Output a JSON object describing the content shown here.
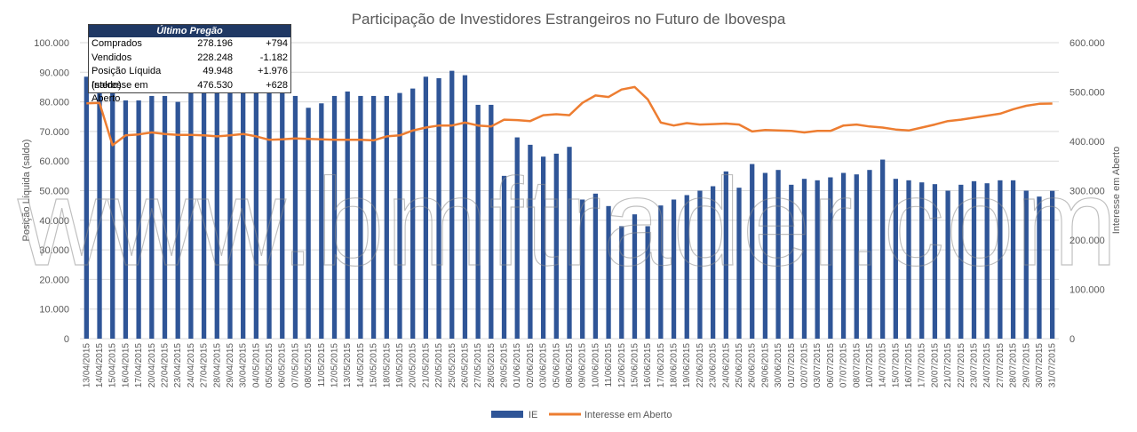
{
  "info_box": {
    "title": "Último Pregão",
    "rows": [
      {
        "label": "Comprados",
        "value": "278.196",
        "change": "+794"
      },
      {
        "label": "Vendidos",
        "value": "228.248",
        "change": "-1.182"
      },
      {
        "label": "Posição Líquida (saldo)",
        "value": "49.948",
        "change": "+1.976"
      },
      {
        "label": "Interesse em Aberto",
        "value": "476.530",
        "change": "+628"
      }
    ]
  },
  "watermark": "www.bmftrader.com",
  "colors": {
    "bar": "#2f5597",
    "line": "#ed7d31",
    "grid": "#d9d9d9",
    "text": "#595959"
  },
  "chart_data": {
    "type": "bar",
    "title": "Participação de Investidores Estrangeiros no Futuro de Ibovespa",
    "ylabel": "Posição Líquida (saldo)",
    "y2label": "Interesse em Aberto",
    "ylim": [
      0,
      100000
    ],
    "y2lim": [
      0,
      600000
    ],
    "yticks": [
      "0",
      "10.000",
      "20.000",
      "30.000",
      "40.000",
      "50.000",
      "60.000",
      "70.000",
      "80.000",
      "90.000",
      "100.000"
    ],
    "y2ticks": [
      "0",
      "100.000",
      "200.000",
      "300.000",
      "400.000",
      "500.000",
      "600.000"
    ],
    "grid": true,
    "legend_position": "bottom",
    "categories": [
      "13/04/2015",
      "14/04/2015",
      "15/04/2015",
      "16/04/2015",
      "17/04/2015",
      "20/04/2015",
      "22/04/2015",
      "23/04/2015",
      "24/04/2015",
      "27/04/2015",
      "28/04/2015",
      "29/04/2015",
      "30/04/2015",
      "04/05/2015",
      "05/05/2015",
      "06/05/2015",
      "07/05/2015",
      "08/05/2015",
      "11/05/2015",
      "12/05/2015",
      "13/05/2015",
      "14/05/2015",
      "15/05/2015",
      "18/05/2015",
      "19/05/2015",
      "20/05/2015",
      "21/05/2015",
      "22/05/2015",
      "25/05/2015",
      "26/05/2015",
      "27/05/2015",
      "28/05/2015",
      "29/05/2015",
      "01/06/2015",
      "02/06/2015",
      "03/06/2015",
      "05/06/2015",
      "08/06/2015",
      "09/06/2015",
      "10/06/2015",
      "11/06/2015",
      "12/06/2015",
      "15/06/2015",
      "16/06/2015",
      "17/06/2015",
      "18/06/2015",
      "19/06/2015",
      "22/06/2015",
      "23/06/2015",
      "24/06/2015",
      "25/06/2015",
      "26/06/2015",
      "29/06/2015",
      "30/06/2015",
      "01/07/2015",
      "02/07/2015",
      "03/07/2015",
      "06/07/2015",
      "07/07/2015",
      "08/07/2015",
      "10/07/2015",
      "14/07/2015",
      "15/07/2015",
      "16/07/2015",
      "17/07/2015",
      "20/07/2015",
      "21/07/2015",
      "22/07/2015",
      "23/07/2015",
      "24/07/2015",
      "27/07/2015",
      "28/07/2015",
      "29/07/2015",
      "30/07/2015",
      "31/07/2015"
    ],
    "series": [
      {
        "name": "IE",
        "type": "bar",
        "axis": "left",
        "values": [
          88500,
          85000,
          83000,
          80500,
          80500,
          82000,
          82000,
          80000,
          83000,
          83000,
          83000,
          83000,
          83000,
          83000,
          83000,
          83000,
          82000,
          78000,
          79500,
          82000,
          83500,
          82000,
          82000,
          82000,
          83000,
          84500,
          88500,
          88000,
          90500,
          89000,
          79000,
          79000,
          55000,
          68000,
          65500,
          61500,
          62500,
          64800,
          47000,
          49000,
          44800,
          38000,
          42000,
          38000,
          45000,
          47000,
          48500,
          50000,
          51500,
          56500,
          51000,
          59000,
          56000,
          57000,
          52000,
          54000,
          53500,
          54500,
          56000,
          55500,
          57000,
          60500,
          54000,
          53500,
          52800,
          52200,
          50000,
          52000,
          53200,
          52500,
          53500,
          53500,
          50000,
          48000,
          49948
        ]
      },
      {
        "name": "Interesse em Aberto",
        "type": "line",
        "axis": "right",
        "values": [
          477000,
          478000,
          392000,
          412000,
          414000,
          418000,
          415000,
          413000,
          413000,
          412000,
          410000,
          412000,
          415000,
          410000,
          403000,
          404000,
          406000,
          405000,
          404000,
          403000,
          403000,
          403000,
          402000,
          410000,
          412000,
          422000,
          428000,
          432000,
          432000,
          438000,
          432000,
          430000,
          444000,
          443000,
          441000,
          453000,
          455000,
          453000,
          478000,
          493000,
          490000,
          505000,
          510000,
          485000,
          438000,
          432000,
          437000,
          434000,
          435000,
          436000,
          434000,
          420000,
          423000,
          422000,
          421000,
          418000,
          421000,
          421000,
          432000,
          434000,
          430000,
          428000,
          424000,
          422000,
          428000,
          434000,
          441000,
          444000,
          448000,
          452000,
          456000,
          465000,
          472000,
          476000,
          476530
        ]
      }
    ]
  }
}
